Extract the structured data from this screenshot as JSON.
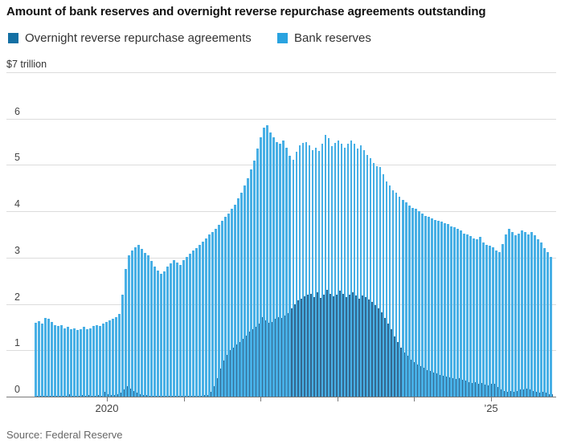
{
  "header": {
    "title": "Amount of bank reserves and overnight reverse repurchase agreements outstanding"
  },
  "legend": {
    "items": [
      {
        "label": "Overnight reverse repurchase agreements",
        "legend_color": "#1470a4"
      },
      {
        "label": "Bank reserves",
        "legend_color": "#29a3e0"
      }
    ]
  },
  "axes": {
    "unit_label": "$7 trillion",
    "y_tick_labels": [
      "6",
      "5",
      "4",
      "3",
      "2",
      "1",
      "0"
    ],
    "x_ticks": [
      {
        "label": "2020",
        "year": 2020
      },
      {
        "label": "’25",
        "year": 2025
      }
    ],
    "tick_years": [
      2020,
      2021,
      2022,
      2023,
      2024,
      2025
    ]
  },
  "footer": {
    "source": "Source: Federal Reserve"
  },
  "chart_data": {
    "type": "bar",
    "stacked": true,
    "grid": "horizontal",
    "ylim": [
      0,
      7
    ],
    "ylabel": "$7 trillion",
    "x_range_years": [
      2019.06,
      2025.78
    ],
    "x_tick_labels": [
      "2020",
      "'25"
    ],
    "legend_position": "top",
    "series": [
      {
        "name": "Overnight reverse repurchase agreements",
        "legend_color": "#1470a4",
        "bar_color": "#35688f",
        "values": [
          0.01,
          0.01,
          0.02,
          0.01,
          0.01,
          0.02,
          0.01,
          0.02,
          0.01,
          0.02,
          0.05,
          0.02,
          0.01,
          0.02,
          0.03,
          0.02,
          0.04,
          0.02,
          0.02,
          0.03,
          0.02,
          0.1,
          0.05,
          0.03,
          0.04,
          0.05,
          0.08,
          0.15,
          0.22,
          0.18,
          0.12,
          0.08,
          0.05,
          0.04,
          0.03,
          0.02,
          0.02,
          0.02,
          0.01,
          0.01,
          0.02,
          0.01,
          0.02,
          0.01,
          0.01,
          0.02,
          0.01,
          0.01,
          0.01,
          0.02,
          0.01,
          0.02,
          0.03,
          0.04,
          0.1,
          0.22,
          0.4,
          0.6,
          0.78,
          0.9,
          1.0,
          1.05,
          1.12,
          1.18,
          1.25,
          1.32,
          1.4,
          1.45,
          1.5,
          1.58,
          1.72,
          1.65,
          1.6,
          1.62,
          1.68,
          1.72,
          1.7,
          1.75,
          1.8,
          1.9,
          2.0,
          2.08,
          2.12,
          2.16,
          2.2,
          2.22,
          2.15,
          2.25,
          2.14,
          2.2,
          2.3,
          2.22,
          2.16,
          2.2,
          2.28,
          2.22,
          2.15,
          2.2,
          2.25,
          2.18,
          2.12,
          2.18,
          2.15,
          2.1,
          2.05,
          1.98,
          1.9,
          1.82,
          1.7,
          1.58,
          1.45,
          1.3,
          1.18,
          1.05,
          0.95,
          0.88,
          0.8,
          0.75,
          0.7,
          0.66,
          0.62,
          0.58,
          0.55,
          0.52,
          0.5,
          0.47,
          0.45,
          0.43,
          0.42,
          0.4,
          0.38,
          0.4,
          0.36,
          0.34,
          0.32,
          0.3,
          0.32,
          0.28,
          0.3,
          0.26,
          0.24,
          0.28,
          0.28,
          0.2,
          0.15,
          0.12,
          0.1,
          0.12,
          0.1,
          0.12,
          0.15,
          0.16,
          0.18,
          0.15,
          0.12,
          0.1,
          0.08,
          0.1,
          0.08,
          0.06,
          0.05
        ]
      },
      {
        "name": "Bank reserves",
        "legend_color": "#29a3e0",
        "bar_color": "#47afe5",
        "values": [
          1.59,
          1.62,
          1.56,
          1.69,
          1.67,
          1.6,
          1.54,
          1.5,
          1.54,
          1.46,
          1.45,
          1.43,
          1.46,
          1.41,
          1.42,
          1.48,
          1.42,
          1.46,
          1.5,
          1.52,
          1.5,
          1.48,
          1.57,
          1.62,
          1.64,
          1.67,
          1.7,
          2.05,
          2.53,
          2.87,
          3.03,
          3.14,
          3.23,
          3.14,
          3.07,
          3.03,
          2.9,
          2.78,
          2.71,
          2.64,
          2.68,
          2.79,
          2.86,
          2.94,
          2.89,
          2.83,
          2.94,
          3.01,
          3.07,
          3.13,
          3.19,
          3.26,
          3.32,
          3.38,
          3.4,
          3.33,
          3.22,
          3.1,
          3.02,
          2.98,
          2.95,
          3.0,
          3.03,
          3.1,
          3.15,
          3.23,
          3.32,
          3.45,
          3.6,
          3.77,
          3.88,
          4.15,
          4.25,
          4.08,
          3.92,
          3.78,
          3.75,
          3.77,
          3.58,
          3.3,
          3.12,
          3.2,
          3.3,
          3.32,
          3.3,
          3.2,
          3.17,
          3.13,
          3.16,
          3.25,
          3.35,
          3.36,
          3.24,
          3.28,
          3.24,
          3.23,
          3.23,
          3.25,
          3.27,
          3.27,
          3.23,
          3.24,
          3.17,
          3.12,
          3.1,
          3.07,
          3.08,
          3.13,
          3.1,
          3.07,
          3.1,
          3.15,
          3.22,
          3.27,
          3.3,
          3.32,
          3.32,
          3.33,
          3.35,
          3.34,
          3.33,
          3.32,
          3.33,
          3.33,
          3.32,
          3.33,
          3.33,
          3.32,
          3.3,
          3.28,
          3.27,
          3.22,
          3.22,
          3.18,
          3.18,
          3.16,
          3.1,
          3.12,
          3.14,
          3.06,
          3.04,
          2.97,
          2.94,
          2.95,
          2.97,
          3.18,
          3.4,
          3.5,
          3.45,
          3.36,
          3.37,
          3.42,
          3.37,
          3.35,
          3.43,
          3.38,
          3.32,
          3.22,
          3.12,
          3.06,
          2.97
        ]
      }
    ]
  }
}
